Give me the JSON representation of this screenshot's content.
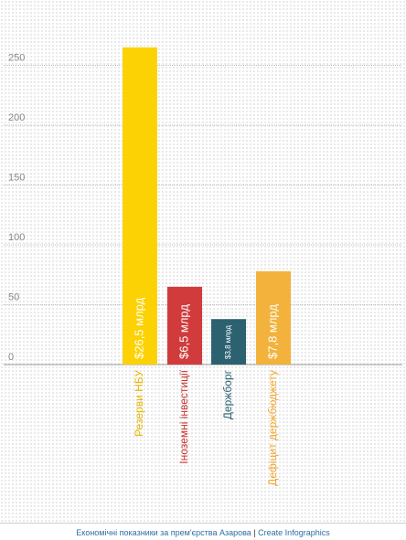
{
  "chart_data": {
    "type": "bar",
    "title": "",
    "xlabel": "",
    "ylabel": "",
    "ylim": [
      0,
      300
    ],
    "yticks": [
      0,
      50,
      100,
      150,
      200,
      250
    ],
    "grid": true,
    "categories": [
      "Резерви НБУ",
      "Іноземні інвестиції",
      "Держборг",
      "Дефіцит держбюджету"
    ],
    "values": [
      265,
      65,
      38,
      78
    ],
    "data_labels": [
      "$26,5 млрд",
      "$6,5 млрд",
      "$3,8 млрд",
      "$7,8 млрд"
    ],
    "colors": [
      "#fcd205",
      "#d13b3b",
      "#2c6170",
      "#f2b23c"
    ],
    "label_colors": [
      "#e8b500",
      "#c9302c",
      "#2c6170",
      "#efa62c"
    ]
  },
  "footer": {
    "title_link": "Економічні показники за прем'єрства Азарова",
    "separator": " | ",
    "brand_link": "Create Infographics"
  }
}
